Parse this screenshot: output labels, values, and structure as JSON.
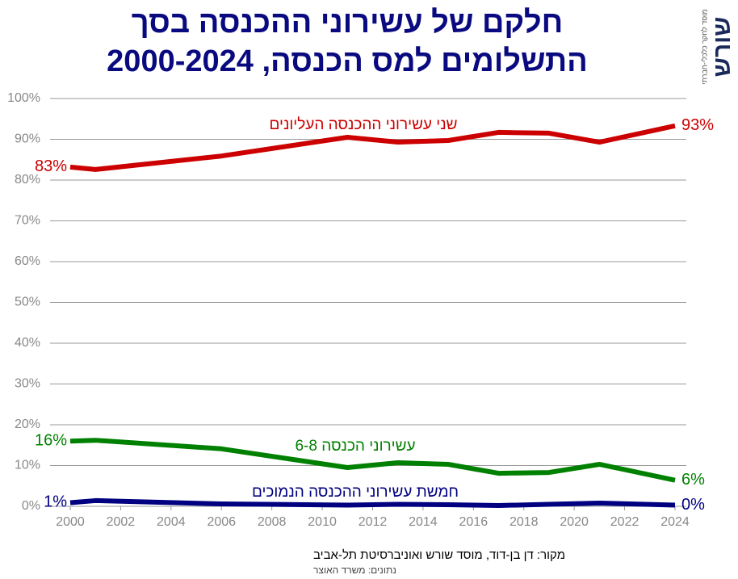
{
  "chart_data": {
    "type": "line",
    "title": "חלקם של עשירוני ההכנסה בסך",
    "subtitle": "התשלומים למס הכנסה, 2000-2024",
    "x": [
      2000,
      2001,
      2006,
      2011,
      2013,
      2015,
      2017,
      2019,
      2021,
      2024
    ],
    "series": [
      {
        "name": "שני עשירוני ההכנסה העליונים",
        "color": "#cc0000",
        "values": [
          83.2,
          82.6,
          85.9,
          90.5,
          89.3,
          89.7,
          91.7,
          91.5,
          89.3,
          93.3
        ],
        "value_labels": [
          "83%",
          null,
          null,
          null,
          null,
          null,
          null,
          null,
          null,
          "93%"
        ]
      },
      {
        "name": "עשירוני הכנסה 6-8",
        "color": "#008000",
        "values": [
          16.0,
          16.2,
          14.1,
          9.5,
          10.7,
          10.3,
          8.1,
          8.3,
          10.3,
          6.4
        ],
        "value_labels": [
          "16%",
          null,
          null,
          null,
          null,
          null,
          null,
          null,
          null,
          "6%"
        ]
      },
      {
        "name": "חמשת עשירוני ההכנסה הנמוכים",
        "color": "#000080",
        "values": [
          0.9,
          1.4,
          0.6,
          0.3,
          0.5,
          0.4,
          0.2,
          0.5,
          0.8,
          0.3
        ],
        "value_labels": [
          "1%",
          null,
          null,
          null,
          null,
          null,
          null,
          null,
          null,
          "0%"
        ]
      }
    ],
    "xlim": [
      2000,
      2024
    ],
    "xticks": [
      2000,
      2002,
      2004,
      2006,
      2008,
      2010,
      2012,
      2014,
      2016,
      2018,
      2020,
      2022,
      2024
    ],
    "ylim": [
      0,
      100
    ],
    "yticks": [
      {
        "value": 0,
        "label": "0%"
      },
      {
        "value": 10,
        "label": "10%"
      },
      {
        "value": 20,
        "label": "20%"
      },
      {
        "value": 30,
        "label": "30%"
      },
      {
        "value": 40,
        "label": "40%"
      },
      {
        "value": 50,
        "label": "50%"
      },
      {
        "value": 60,
        "label": "60%"
      },
      {
        "value": 70,
        "label": "70%"
      },
      {
        "value": 80,
        "label": "80%"
      },
      {
        "value": 90,
        "label": "90%"
      },
      {
        "value": 100,
        "label": "100%"
      }
    ],
    "grid": true,
    "source": "מקור: דן בן-דוד, מוסד שורש ואוניברסיטת תל-אביב",
    "data_source": "נתונים: משרד האוצר"
  },
  "logo": {
    "name": "שורש",
    "tagline": "מוסד לחקר כלכלי-חברתי"
  }
}
